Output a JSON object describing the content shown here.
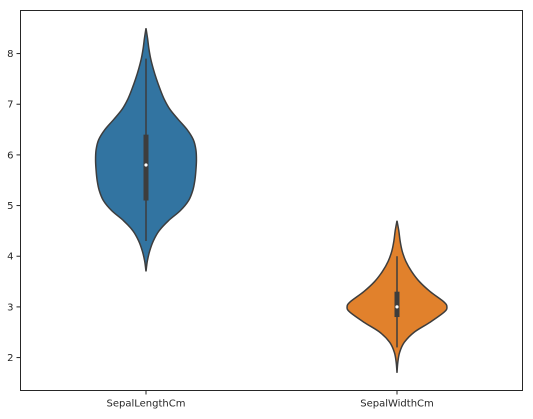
{
  "chart_data": {
    "type": "violin",
    "title": "",
    "xlabel": "",
    "ylabel": "",
    "categories": [
      "SepalLengthCm",
      "SepalWidthCm"
    ],
    "ylim": [
      1.35,
      8.85
    ],
    "yticks": [
      2,
      3,
      4,
      5,
      6,
      7,
      8
    ],
    "grid": false,
    "series": [
      {
        "category": "SepalLengthCm",
        "color": "#3274a1",
        "quartiles": {
          "min": 4.3,
          "q1": 5.1,
          "median": 5.8,
          "q3": 6.4,
          "max": 7.9
        },
        "density": [
          [
            3.7,
            0.0
          ],
          [
            3.9,
            0.025
          ],
          [
            4.1,
            0.07
          ],
          [
            4.3,
            0.14
          ],
          [
            4.5,
            0.25
          ],
          [
            4.7,
            0.43
          ],
          [
            4.9,
            0.66
          ],
          [
            5.1,
            0.82
          ],
          [
            5.3,
            0.9
          ],
          [
            5.5,
            0.94
          ],
          [
            5.7,
            0.96
          ],
          [
            5.9,
            0.97
          ],
          [
            6.1,
            0.96
          ],
          [
            6.3,
            0.91
          ],
          [
            6.5,
            0.79
          ],
          [
            6.7,
            0.62
          ],
          [
            6.9,
            0.46
          ],
          [
            7.1,
            0.35
          ],
          [
            7.3,
            0.27
          ],
          [
            7.5,
            0.2
          ],
          [
            7.7,
            0.14
          ],
          [
            7.9,
            0.09
          ],
          [
            8.1,
            0.055
          ],
          [
            8.3,
            0.03
          ],
          [
            8.5,
            0.0
          ]
        ]
      },
      {
        "category": "SepalWidthCm",
        "color": "#e1812c",
        "quartiles": {
          "min": 2.2,
          "q1": 2.8,
          "median": 3.0,
          "q3": 3.3,
          "max": 4.0
        },
        "density": [
          [
            1.7,
            0.0
          ],
          [
            1.9,
            0.015
          ],
          [
            2.1,
            0.05
          ],
          [
            2.3,
            0.14
          ],
          [
            2.5,
            0.33
          ],
          [
            2.7,
            0.64
          ],
          [
            2.9,
            0.91
          ],
          [
            3.0,
            0.96
          ],
          [
            3.1,
            0.9
          ],
          [
            3.3,
            0.64
          ],
          [
            3.5,
            0.43
          ],
          [
            3.7,
            0.28
          ],
          [
            3.9,
            0.17
          ],
          [
            4.1,
            0.1
          ],
          [
            4.3,
            0.06
          ],
          [
            4.5,
            0.035
          ],
          [
            4.7,
            0.0
          ]
        ]
      }
    ]
  }
}
